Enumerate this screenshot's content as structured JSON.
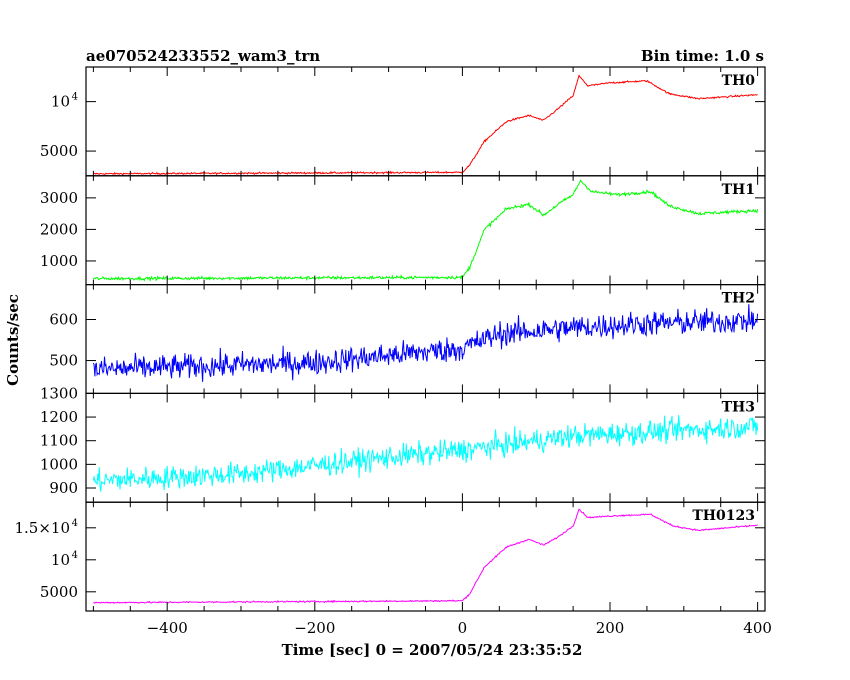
{
  "chart_data": {
    "type": "line",
    "title_left": "ae070524233552_wam3_trn",
    "title_right": "Bin time: 1.0 s",
    "xlabel": "Time [sec] 0 = 2007/05/24 23:35:52",
    "ylabel": "Counts/sec",
    "xlim": [
      -510,
      410
    ],
    "x_ticks": [
      {
        "v": -400,
        "t": "−400"
      },
      {
        "v": -200,
        "t": "−200"
      },
      {
        "v": 0,
        "t": "0"
      },
      {
        "v": 200,
        "t": "200"
      },
      {
        "v": 400,
        "t": "400"
      }
    ],
    "panels": [
      {
        "name": "TH0",
        "color": "#ff0000",
        "ylim": [
          2500,
          13500
        ],
        "ticks": [
          {
            "v": 5000,
            "t": "5000"
          },
          {
            "v": 10000,
            "t": "10",
            "sup": "4"
          }
        ],
        "noise": 60,
        "profile": [
          [
            -500,
            2700
          ],
          [
            0,
            2850
          ],
          [
            10,
            3600
          ],
          [
            30,
            6000
          ],
          [
            60,
            8000
          ],
          [
            90,
            8600
          ],
          [
            110,
            8100
          ],
          [
            130,
            9300
          ],
          [
            150,
            10600
          ],
          [
            158,
            12600
          ],
          [
            170,
            11600
          ],
          [
            200,
            11900
          ],
          [
            250,
            12100
          ],
          [
            280,
            10800
          ],
          [
            320,
            10300
          ],
          [
            400,
            10700
          ]
        ]
      },
      {
        "name": "TH1",
        "color": "#00ff00",
        "ylim": [
          250,
          3700
        ],
        "ticks": [
          {
            "v": 1000,
            "t": "1000"
          },
          {
            "v": 2000,
            "t": "2000"
          },
          {
            "v": 3000,
            "t": "3000"
          }
        ],
        "noise": 35,
        "profile": [
          [
            -500,
            440
          ],
          [
            0,
            480
          ],
          [
            10,
            800
          ],
          [
            30,
            2000
          ],
          [
            60,
            2650
          ],
          [
            90,
            2800
          ],
          [
            110,
            2450
          ],
          [
            130,
            2800
          ],
          [
            150,
            3100
          ],
          [
            160,
            3550
          ],
          [
            175,
            3200
          ],
          [
            210,
            3100
          ],
          [
            255,
            3200
          ],
          [
            280,
            2750
          ],
          [
            320,
            2500
          ],
          [
            400,
            2600
          ]
        ]
      },
      {
        "name": "TH2",
        "color": "#0000ff",
        "ylim": [
          420,
          685
        ],
        "ticks": [
          {
            "v": 500,
            "t": "500"
          },
          {
            "v": 600,
            "t": "600"
          }
        ],
        "noise": 22,
        "profile": [
          [
            -500,
            478
          ],
          [
            -200,
            495
          ],
          [
            0,
            530
          ],
          [
            50,
            565
          ],
          [
            150,
            580
          ],
          [
            250,
            590
          ],
          [
            400,
            598
          ]
        ]
      },
      {
        "name": "TH3",
        "color": "#00ffff",
        "ylim": [
          840,
          1300
        ],
        "ticks": [
          {
            "v": 900,
            "t": "900"
          },
          {
            "v": 1000,
            "t": "1000"
          },
          {
            "v": 1100,
            "t": "1100"
          },
          {
            "v": 1200,
            "t": "1200"
          },
          {
            "v": 1300,
            "t": "1300"
          }
        ],
        "noise": 35,
        "profile": [
          [
            -500,
            930
          ],
          [
            -300,
            960
          ],
          [
            -100,
            1030
          ],
          [
            0,
            1060
          ],
          [
            150,
            1120
          ],
          [
            300,
            1145
          ],
          [
            400,
            1160
          ]
        ]
      },
      {
        "name": "TH0123",
        "color": "#ff00ff",
        "ylim": [
          2000,
          19000
        ],
        "ticks": [
          {
            "v": 5000,
            "t": "5000"
          },
          {
            "v": 10000,
            "t": "10",
            "sup": "4"
          },
          {
            "v": 15000,
            "t": "1.5×10",
            "sup": "4"
          }
        ],
        "noise": 80,
        "profile": [
          [
            -500,
            3300
          ],
          [
            0,
            3600
          ],
          [
            10,
            4700
          ],
          [
            30,
            8900
          ],
          [
            60,
            12000
          ],
          [
            90,
            13200
          ],
          [
            110,
            12300
          ],
          [
            130,
            13600
          ],
          [
            150,
            15300
          ],
          [
            158,
            17900
          ],
          [
            170,
            16600
          ],
          [
            210,
            16900
          ],
          [
            255,
            17100
          ],
          [
            285,
            15300
          ],
          [
            320,
            14600
          ],
          [
            400,
            15400
          ]
        ]
      }
    ]
  }
}
